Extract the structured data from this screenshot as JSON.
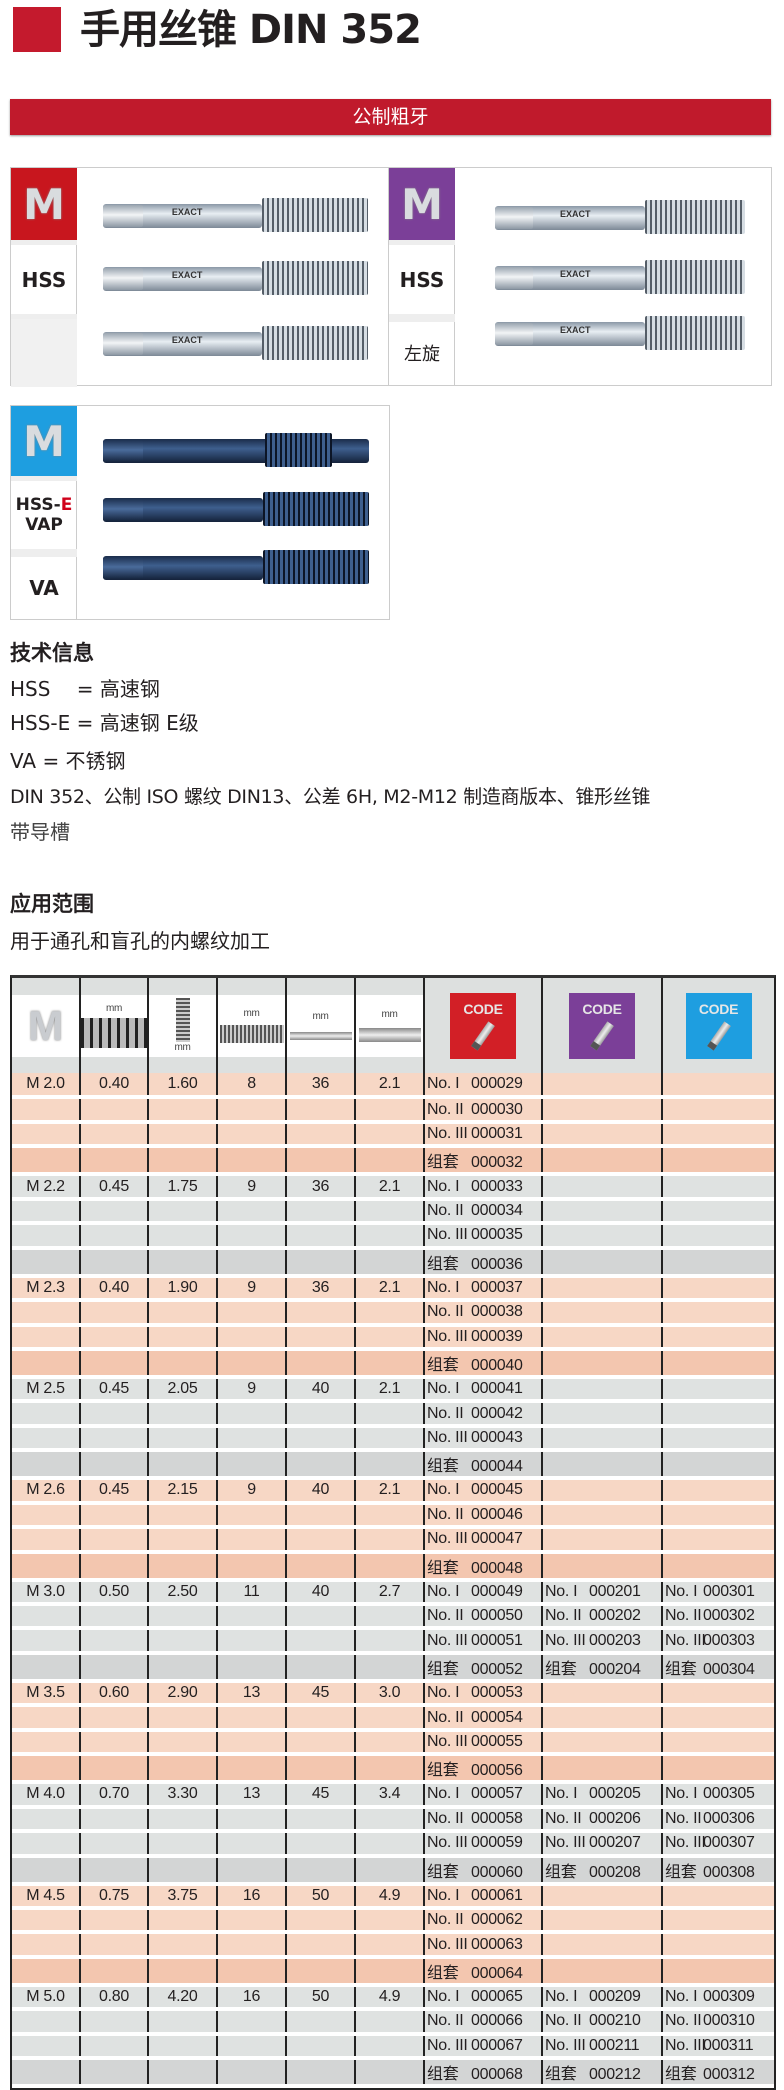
{
  "header": {
    "title": "手用丝锥 DIN 352",
    "accent_color": "#c41a2d"
  },
  "section_bar": {
    "label": "公制粗牙"
  },
  "panels": [
    {
      "badge": "M",
      "badge_color": "#c8161e",
      "labels": [
        "HSS",
        ""
      ],
      "brand": "EXACT"
    },
    {
      "badge": "M",
      "badge_color": "#7b3f98",
      "labels": [
        "HSS",
        "左旋"
      ],
      "brand": "EXACT"
    },
    {
      "badge": "M",
      "badge_color": "#1e9ee0",
      "labels": [
        "HSS-",
        "E",
        "VAP",
        "VA"
      ]
    }
  ],
  "tech_info": {
    "heading": "技术信息",
    "lines": [
      "HSS　 = 高速钢",
      "HSS-E = 高速钢 E级",
      "VA = 不锈钢",
      "DIN 352、公制 ISO 螺纹 DIN13、公差 6H, M2-M12 制造商版本、锥形丝锥",
      "带导槽"
    ]
  },
  "application": {
    "heading": "应用范围",
    "text": "用于通孔和盲孔的内螺纹加工"
  },
  "table": {
    "header": {
      "m": "M",
      "mm": "mm",
      "code": "CODE",
      "code_colors": [
        "#d21f26",
        "#7b3f98",
        "#1e9ee0"
      ]
    },
    "set_labels": [
      "No. I",
      "No. II",
      "No. III",
      "组套"
    ],
    "row_colors": {
      "peach": "#f7d7c5",
      "peach_dark": "#f3c6af",
      "grey": "#dfe2e1",
      "grey_dark": "#d3d5d5"
    },
    "groups": [
      {
        "size": "M 2.0",
        "pitch": "0.40",
        "drill": "1.60",
        "thread_len": "8",
        "total_len": "36",
        "square": "2.1",
        "codes": [
          [
            "000029",
            "000030",
            "000031",
            "000032"
          ],
          null,
          null
        ]
      },
      {
        "size": "M 2.2",
        "pitch": "0.45",
        "drill": "1.75",
        "thread_len": "9",
        "total_len": "36",
        "square": "2.1",
        "codes": [
          [
            "000033",
            "000034",
            "000035",
            "000036"
          ],
          null,
          null
        ]
      },
      {
        "size": "M 2.3",
        "pitch": "0.40",
        "drill": "1.90",
        "thread_len": "9",
        "total_len": "36",
        "square": "2.1",
        "codes": [
          [
            "000037",
            "000038",
            "000039",
            "000040"
          ],
          null,
          null
        ]
      },
      {
        "size": "M 2.5",
        "pitch": "0.45",
        "drill": "2.05",
        "thread_len": "9",
        "total_len": "40",
        "square": "2.1",
        "codes": [
          [
            "000041",
            "000042",
            "000043",
            "000044"
          ],
          null,
          null
        ]
      },
      {
        "size": "M 2.6",
        "pitch": "0.45",
        "drill": "2.15",
        "thread_len": "9",
        "total_len": "40",
        "square": "2.1",
        "codes": [
          [
            "000045",
            "000046",
            "000047",
            "000048"
          ],
          null,
          null
        ]
      },
      {
        "size": "M 3.0",
        "pitch": "0.50",
        "drill": "2.50",
        "thread_len": "11",
        "total_len": "40",
        "square": "2.7",
        "codes": [
          [
            "000049",
            "000050",
            "000051",
            "000052"
          ],
          [
            "000201",
            "000202",
            "000203",
            "000204"
          ],
          [
            "000301",
            "000302",
            "000303",
            "000304"
          ]
        ]
      },
      {
        "size": "M 3.5",
        "pitch": "0.60",
        "drill": "2.90",
        "thread_len": "13",
        "total_len": "45",
        "square": "3.0",
        "codes": [
          [
            "000053",
            "000054",
            "000055",
            "000056"
          ],
          null,
          null
        ]
      },
      {
        "size": "M 4.0",
        "pitch": "0.70",
        "drill": "3.30",
        "thread_len": "13",
        "total_len": "45",
        "square": "3.4",
        "codes": [
          [
            "000057",
            "000058",
            "000059",
            "000060"
          ],
          [
            "000205",
            "000206",
            "000207",
            "000208"
          ],
          [
            "000305",
            "000306",
            "000307",
            "000308"
          ]
        ]
      },
      {
        "size": "M 4.5",
        "pitch": "0.75",
        "drill": "3.75",
        "thread_len": "16",
        "total_len": "50",
        "square": "4.9",
        "codes": [
          [
            "000061",
            "000062",
            "000063",
            "000064"
          ],
          null,
          null
        ]
      },
      {
        "size": "M 5.0",
        "pitch": "0.80",
        "drill": "4.20",
        "thread_len": "16",
        "total_len": "50",
        "square": "4.9",
        "codes": [
          [
            "000065",
            "000066",
            "000067",
            "000068"
          ],
          [
            "000209",
            "000210",
            "000211",
            "000212"
          ],
          [
            "000309",
            "000310",
            "000311",
            "000312"
          ]
        ]
      }
    ]
  }
}
